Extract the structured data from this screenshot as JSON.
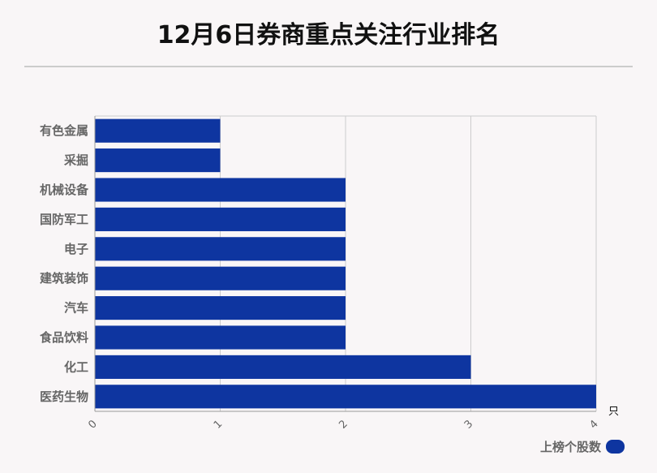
{
  "title": "12月6日券商重点关注行业排名",
  "colors": {
    "bar": "#0e35a0",
    "grid": "#cccccc",
    "background": "#f9f6f7"
  },
  "legend": {
    "label": "上榜个股数"
  },
  "chart_data": {
    "type": "bar",
    "orientation": "horizontal",
    "categories": [
      "有色金属",
      "采掘",
      "机械设备",
      "国防军工",
      "电子",
      "建筑装饰",
      "汽车",
      "食品饮料",
      "化工",
      "医药生物"
    ],
    "series": [
      {
        "name": "上榜个股数",
        "values": [
          1,
          1,
          2,
          2,
          2,
          2,
          2,
          2,
          3,
          4
        ]
      }
    ],
    "x_ticks": [
      "0",
      "1",
      "2",
      "3",
      "4"
    ],
    "xlim": [
      0,
      4
    ],
    "x_unit": "只",
    "grid": true,
    "legend_position": "bottom-right"
  }
}
